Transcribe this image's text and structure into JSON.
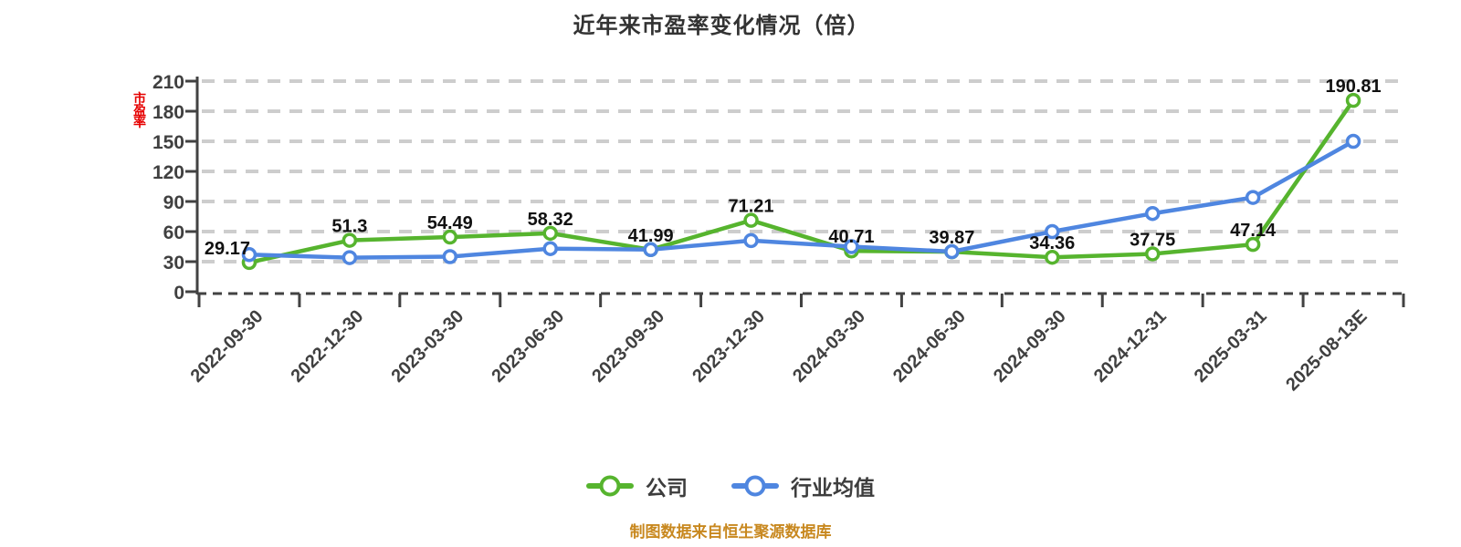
{
  "title": "近年来市盈率变化情况（倍）",
  "y_axis_name": "市盈率",
  "footer": "制图数据来自恒生聚源数据库",
  "colors": {
    "company": "#56b42e",
    "industry": "#4f86e0",
    "grid": "#cdcdcd",
    "axis": "#424242",
    "tick_label": "#404040",
    "point_label": "#111111",
    "title": "#333333",
    "axis_name": "#e60000",
    "footer": "#c8881f",
    "marker_fill": "#ffffff"
  },
  "chart_data": {
    "type": "line",
    "title": "近年来市盈率变化情况（倍）",
    "x": [
      "2022-09-30",
      "2022-12-30",
      "2023-03-30",
      "2023-06-30",
      "2023-09-30",
      "2023-12-30",
      "2024-03-30",
      "2024-06-30",
      "2024-09-30",
      "2024-12-31",
      "2025-03-31",
      "2025-08-13E"
    ],
    "series": [
      {
        "name": "公司",
        "color": "#56b42e",
        "values": [
          29.17,
          51.3,
          54.49,
          58.32,
          41.99,
          71.21,
          40.71,
          39.87,
          34.36,
          37.75,
          47.14,
          190.81
        ],
        "point_labels": [
          "29.17",
          "51.3",
          "54.49",
          "58.32",
          "41.99",
          "71.21",
          "40.71",
          "39.87",
          "34.36",
          "37.75",
          "47.14",
          "190.81"
        ]
      },
      {
        "name": "行业均值",
        "color": "#4f86e0",
        "values": [
          37,
          34,
          35,
          43,
          42,
          51,
          45,
          40,
          60,
          78,
          94,
          150
        ],
        "point_labels": null
      }
    ],
    "ylabel": "市盈率",
    "xlabel": "",
    "ylim": [
      0,
      210
    ],
    "y_ticks": [
      0,
      30,
      60,
      90,
      120,
      150,
      180,
      210
    ],
    "grid": "horizontal-dashed",
    "legend_position": "bottom"
  }
}
